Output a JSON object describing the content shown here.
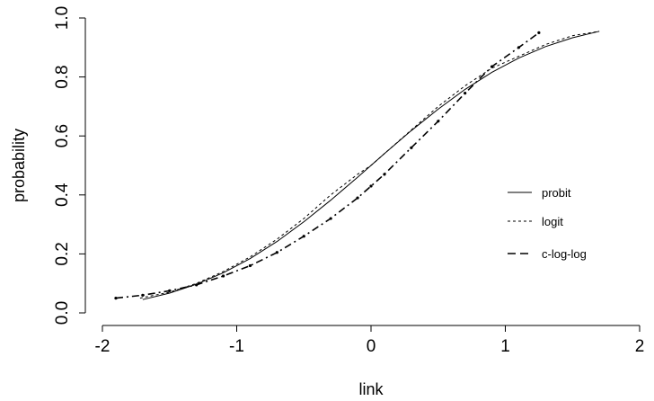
{
  "chart_data": {
    "type": "line",
    "title": "",
    "xlabel": "link",
    "ylabel": "probability",
    "xlim": [
      -2.1,
      2.1
    ],
    "ylim": [
      -0.01,
      1.0
    ],
    "x_ticks": [
      "-2",
      "-1",
      "0",
      "1",
      "2"
    ],
    "y_ticks": [
      "0.0",
      "0.2",
      "0.4",
      "0.6",
      "0.8",
      "1.0"
    ],
    "grid": false,
    "legend_position": "right",
    "series": [
      {
        "name": "probit",
        "line_style": "solid",
        "x": [
          -1.7,
          -1.5,
          -1.3,
          -1.1,
          -0.9,
          -0.7,
          -0.5,
          -0.3,
          -0.1,
          0.0,
          0.1,
          0.3,
          0.5,
          0.7,
          0.9,
          1.1,
          1.3,
          1.5,
          1.7
        ],
        "y": [
          0.045,
          0.067,
          0.097,
          0.136,
          0.184,
          0.242,
          0.309,
          0.382,
          0.46,
          0.5,
          0.54,
          0.618,
          0.691,
          0.758,
          0.816,
          0.864,
          0.903,
          0.933,
          0.955
        ]
      },
      {
        "name": "logit",
        "line_style": "dotted",
        "x": [
          -1.72,
          -1.5,
          -1.3,
          -1.1,
          -0.9,
          -0.7,
          -0.5,
          -0.3,
          -0.1,
          0.0,
          0.1,
          0.3,
          0.5,
          0.7,
          0.9,
          1.1,
          1.3,
          1.5,
          1.7
        ],
        "y": [
          0.05,
          0.07,
          0.1,
          0.14,
          0.19,
          0.25,
          0.32,
          0.4,
          0.47,
          0.5,
          0.54,
          0.62,
          0.7,
          0.77,
          0.83,
          0.87,
          0.91,
          0.94,
          0.955
        ]
      },
      {
        "name": "c-log-log",
        "line_style": "dashed",
        "x": [
          -1.9,
          -1.7,
          -1.5,
          -1.3,
          -1.1,
          -0.9,
          -0.7,
          -0.5,
          -0.3,
          -0.1,
          0.0,
          0.1,
          0.3,
          0.5,
          0.7,
          0.9,
          1.1,
          1.25
        ],
        "y": [
          0.05,
          0.06,
          0.075,
          0.095,
          0.125,
          0.16,
          0.205,
          0.26,
          0.32,
          0.39,
          0.43,
          0.47,
          0.56,
          0.65,
          0.745,
          0.835,
          0.9,
          0.95
        ]
      }
    ]
  }
}
